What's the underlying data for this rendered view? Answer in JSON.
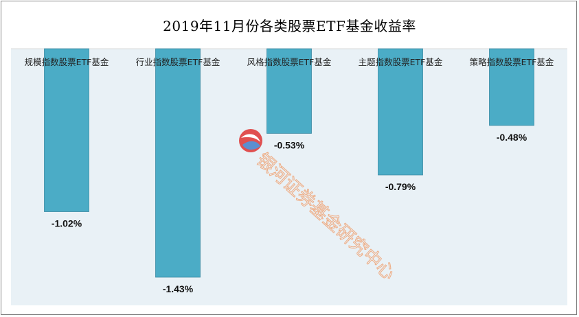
{
  "chart_data": {
    "type": "bar",
    "title": "2019年11月份各类股票ETF基金收益率",
    "categories": [
      "规模指数股票ETF基金",
      "行业指数股票ETF基金",
      "风格指数股票ETF基金",
      "主题指数股票ETF基金",
      "策略指数股票ETF基金"
    ],
    "values": [
      -1.02,
      -1.43,
      -0.53,
      -0.79,
      -0.48
    ],
    "value_labels": [
      "-1.02%",
      "-1.43%",
      "-0.53%",
      "-0.79%",
      "-0.48%"
    ],
    "ylim": [
      -1.43,
      0
    ],
    "grid": false,
    "legend": "none",
    "colors": {
      "bar": "#4bacc6",
      "plot_bg": "#e9f1f6",
      "watermark": "#f0a070",
      "logo_red": "#e05050"
    }
  },
  "watermark": "银河证券基金研究中心"
}
